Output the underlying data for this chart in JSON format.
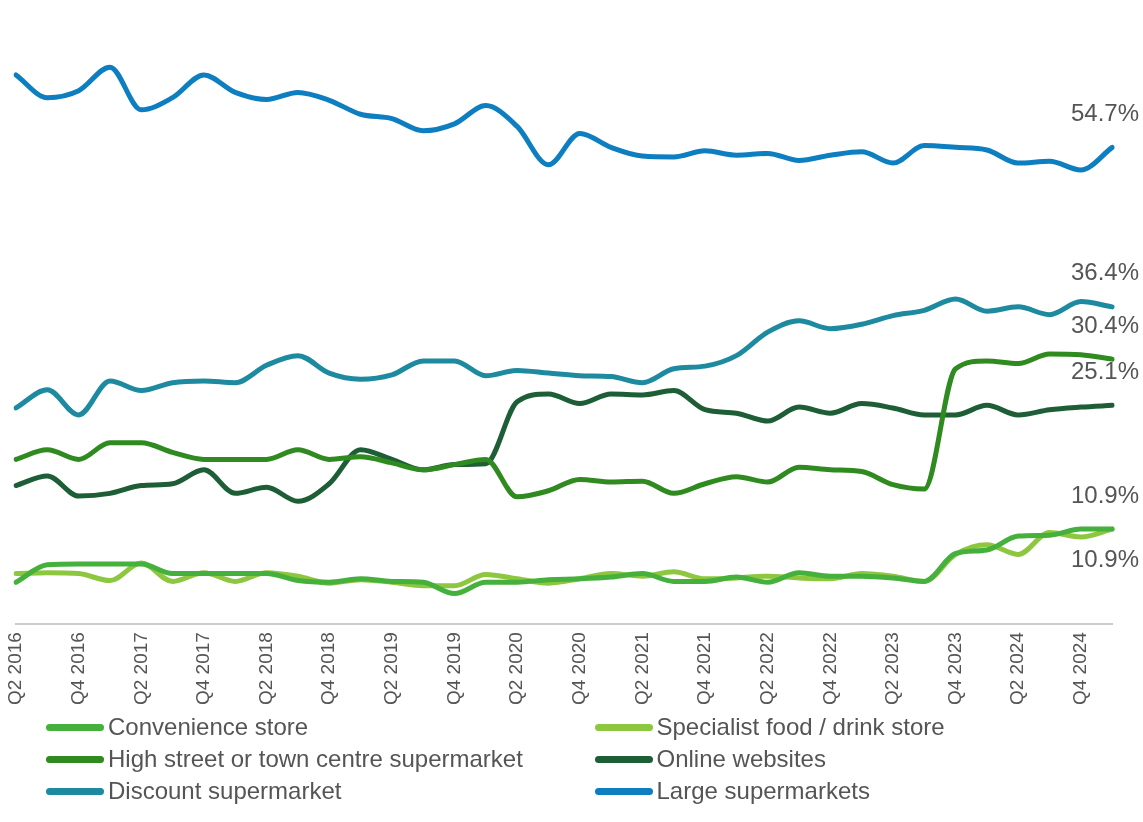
{
  "chart_data": {
    "type": "line",
    "categories": [
      "Q2 2016",
      null,
      "Q4 2016",
      null,
      "Q2 2017",
      null,
      "Q4 2017",
      null,
      "Q2 2018",
      null,
      "Q4 2018",
      null,
      "Q2 2019",
      null,
      "Q4 2019",
      null,
      "Q2 2020",
      null,
      "Q4 2020",
      null,
      "Q2 2021",
      null,
      "Q4 2021",
      null,
      "Q2 2022",
      null,
      "Q4 2022",
      null,
      "Q2 2023",
      null,
      "Q4 2023",
      null,
      "Q2 2024",
      null,
      "Q4 2024",
      null
    ],
    "legend": "bottom",
    "grid": false,
    "marker": "none",
    "line_style": "solid",
    "tick_labels": "x",
    "series": [
      {
        "name": "Convenience store",
        "color": "#45b03c",
        "values": [
          4.8,
          6.8,
          6.9,
          6.9,
          6.9,
          5.8,
          5.8,
          5.8,
          5.8,
          5.0,
          4.8,
          5.2,
          4.9,
          4.8,
          3.5,
          4.8,
          4.8,
          5.1,
          5.2,
          5.4,
          5.8,
          4.9,
          4.9,
          5.4,
          4.8,
          5.9,
          5.5,
          5.5,
          5.3,
          4.9,
          8.1,
          8.5,
          10.1,
          10.2,
          10.9,
          10.9
        ],
        "value_labels": [
          null,
          null,
          null,
          null,
          null,
          null,
          null,
          null,
          null,
          null,
          null,
          null,
          null,
          null,
          null,
          null,
          null,
          null,
          null,
          null,
          null,
          null,
          null,
          null,
          null,
          null,
          null,
          null,
          null,
          null,
          null,
          null,
          null,
          null,
          null,
          "10.9%"
        ]
      },
      {
        "name": "Specialist food / drink store",
        "color": "#8dc63f",
        "values": [
          5.8,
          5.9,
          5.8,
          5.0,
          7.0,
          4.9,
          5.9,
          4.9,
          5.9,
          5.5,
          4.7,
          5.1,
          4.8,
          4.4,
          4.4,
          5.7,
          5.2,
          4.7,
          5.2,
          5.8,
          5.5,
          6.0,
          5.2,
          5.3,
          5.5,
          5.3,
          5.2,
          5.8,
          5.5,
          4.9,
          8.0,
          9.1,
          8.0,
          10.5,
          10.0,
          10.9
        ],
        "value_labels": [
          null,
          null,
          null,
          null,
          null,
          null,
          null,
          null,
          null,
          null,
          null,
          null,
          null,
          null,
          null,
          null,
          null,
          null,
          null,
          null,
          null,
          null,
          null,
          null,
          null,
          null,
          null,
          null,
          null,
          null,
          null,
          null,
          null,
          null,
          null,
          "10.9%"
        ]
      },
      {
        "name": "High street or town centre supermarket",
        "color": "#2f8a1f",
        "values": [
          18.9,
          20.0,
          18.9,
          20.8,
          20.8,
          19.7,
          18.9,
          18.9,
          18.9,
          20.0,
          18.9,
          19.2,
          18.5,
          17.7,
          18.3,
          18.9,
          14.6,
          15.3,
          16.6,
          16.3,
          16.4,
          15.0,
          16.1,
          16.9,
          16.3,
          18.0,
          17.7,
          17.5,
          16.0,
          15.5,
          29.3,
          30.2,
          29.9,
          31.0,
          30.9,
          30.4
        ],
        "value_labels": [
          null,
          null,
          null,
          null,
          null,
          null,
          null,
          null,
          null,
          null,
          null,
          null,
          null,
          null,
          null,
          null,
          null,
          null,
          null,
          null,
          null,
          null,
          null,
          null,
          null,
          null,
          null,
          null,
          null,
          null,
          null,
          null,
          null,
          null,
          null,
          "30.4%"
        ]
      },
      {
        "name": "Online websites",
        "color": "#1e5e36",
        "values": [
          15.9,
          17.0,
          14.7,
          15.0,
          15.9,
          16.1,
          17.7,
          15.0,
          15.7,
          14.1,
          16.1,
          20.0,
          18.9,
          17.7,
          18.3,
          18.4,
          25.5,
          26.4,
          25.3,
          26.4,
          26.3,
          26.8,
          24.6,
          24.2,
          23.3,
          24.9,
          24.2,
          25.3,
          24.8,
          24.0,
          24.0,
          25.1,
          24.0,
          24.6,
          24.9,
          25.1
        ],
        "value_labels": [
          null,
          null,
          null,
          null,
          null,
          null,
          null,
          null,
          null,
          null,
          null,
          null,
          null,
          null,
          null,
          null,
          null,
          null,
          null,
          null,
          null,
          null,
          null,
          null,
          null,
          null,
          null,
          null,
          null,
          null,
          null,
          null,
          null,
          null,
          null,
          "25.1%"
        ]
      },
      {
        "name": "Discount supermarket",
        "color": "#1e8aa0",
        "values": [
          24.8,
          26.9,
          24.0,
          27.9,
          26.8,
          27.7,
          27.9,
          27.7,
          29.7,
          30.8,
          28.8,
          28.1,
          28.6,
          30.2,
          30.2,
          28.5,
          29.1,
          28.8,
          28.5,
          28.4,
          27.7,
          29.3,
          29.6,
          30.8,
          33.5,
          34.8,
          33.9,
          34.4,
          35.4,
          36.0,
          37.3,
          35.9,
          36.4,
          35.5,
          37.0,
          36.4
        ],
        "value_labels": [
          null,
          null,
          null,
          null,
          null,
          null,
          null,
          null,
          null,
          null,
          null,
          null,
          null,
          null,
          null,
          null,
          null,
          null,
          null,
          null,
          null,
          null,
          null,
          null,
          null,
          null,
          null,
          null,
          null,
          null,
          null,
          null,
          null,
          null,
          null,
          "36.4%"
        ]
      },
      {
        "name": "Large supermarkets",
        "color": "#0d7ec0",
        "values": [
          63.0,
          60.4,
          61.2,
          63.9,
          59.0,
          60.4,
          63.0,
          61.0,
          60.2,
          61.0,
          60.1,
          58.5,
          58.0,
          56.6,
          57.4,
          59.5,
          57.1,
          52.7,
          56.3,
          54.7,
          53.7,
          53.6,
          54.3,
          53.8,
          54.0,
          53.2,
          53.8,
          54.2,
          52.9,
          54.9,
          54.7,
          54.4,
          52.9,
          53.1,
          52.1,
          54.7
        ],
        "value_labels": [
          null,
          null,
          null,
          null,
          null,
          null,
          null,
          null,
          null,
          null,
          null,
          null,
          null,
          null,
          null,
          null,
          null,
          null,
          null,
          null,
          null,
          null,
          null,
          null,
          null,
          null,
          null,
          null,
          null,
          null,
          null,
          null,
          null,
          null,
          null,
          "54.7%"
        ]
      }
    ]
  }
}
